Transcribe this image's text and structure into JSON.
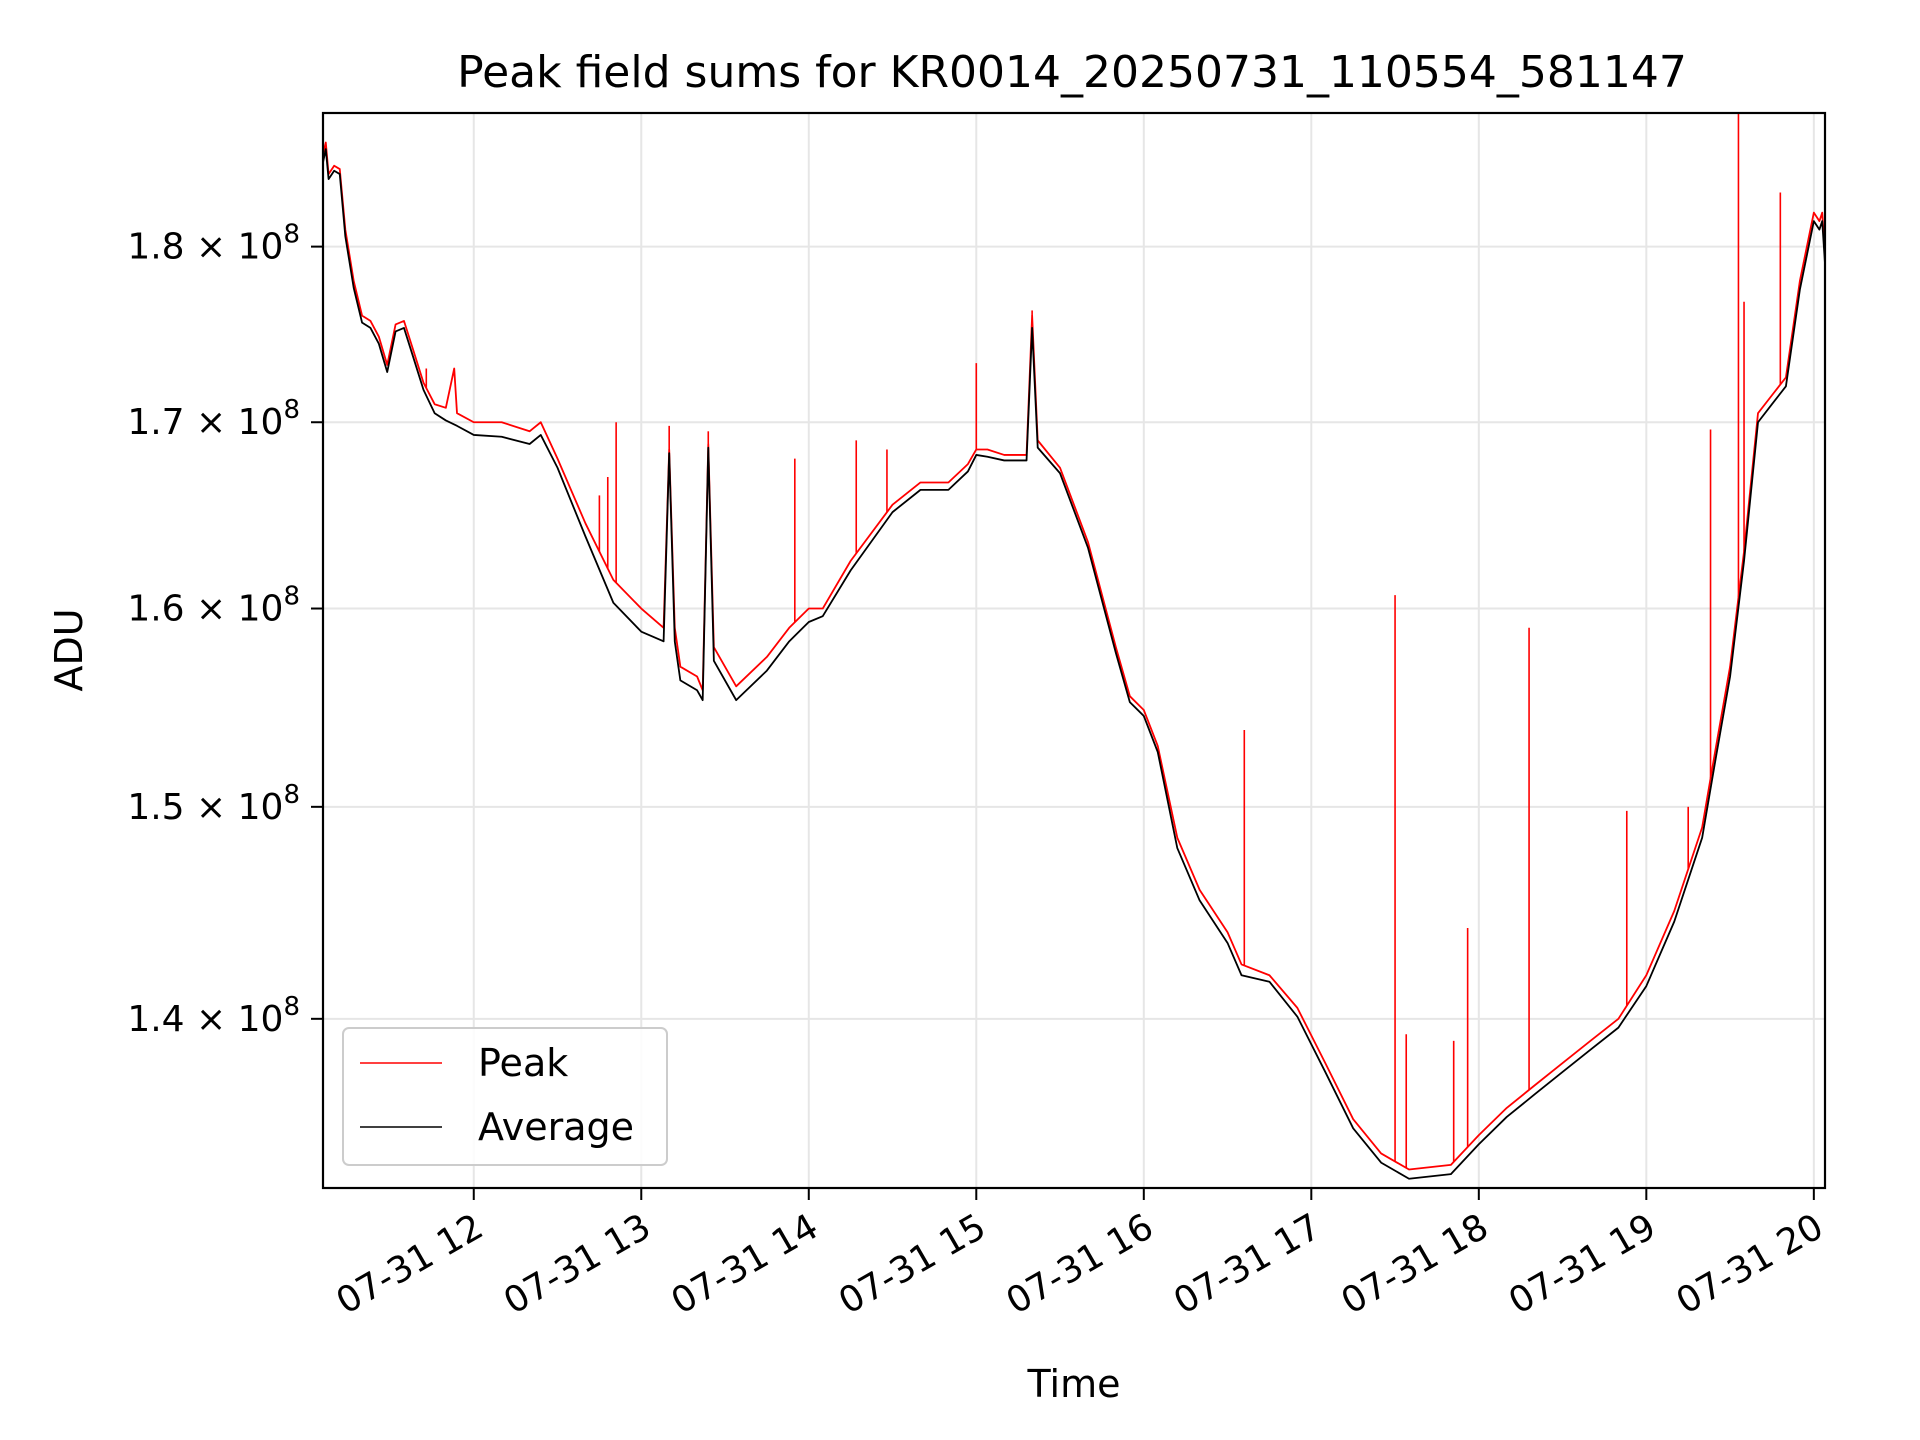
{
  "chart_data": {
    "type": "line",
    "title": "Peak field sums for KR0014_20250731_110554_581147",
    "xlabel": "Time",
    "ylabel": "ADU",
    "y_scale": "log",
    "grid": true,
    "legend_position": "lower-left",
    "xlim": [
      "2025-07-31 11:06",
      "2025-07-31 20:04"
    ],
    "ylim": [
      132500000,
      188000000
    ],
    "x_ticks": [
      {
        "value": "2025-07-31 12:00",
        "label": "07-31 12"
      },
      {
        "value": "2025-07-31 13:00",
        "label": "07-31 13"
      },
      {
        "value": "2025-07-31 14:00",
        "label": "07-31 14"
      },
      {
        "value": "2025-07-31 15:00",
        "label": "07-31 15"
      },
      {
        "value": "2025-07-31 16:00",
        "label": "07-31 16"
      },
      {
        "value": "2025-07-31 17:00",
        "label": "07-31 17"
      },
      {
        "value": "2025-07-31 18:00",
        "label": "07-31 18"
      },
      {
        "value": "2025-07-31 19:00",
        "label": "07-31 19"
      },
      {
        "value": "2025-07-31 20:00",
        "label": "07-31 20"
      }
    ],
    "y_ticks": [
      {
        "value": 140000000,
        "label": "1.4",
        "exp": "8"
      },
      {
        "value": 150000000,
        "label": "1.5",
        "exp": "8"
      },
      {
        "value": 160000000,
        "label": "1.6",
        "exp": "8"
      },
      {
        "value": 170000000,
        "label": "1.7",
        "exp": "8"
      },
      {
        "value": 180000000,
        "label": "1.8",
        "exp": "8"
      }
    ],
    "series": [
      {
        "name": "Peak",
        "color": "#ff0000",
        "points": [
          [
            "2025-07-31 11:06",
            185500000
          ],
          [
            "2025-07-31 11:07",
            186200000
          ],
          [
            "2025-07-31 11:08",
            184300000
          ],
          [
            "2025-07-31 11:10",
            184800000
          ],
          [
            "2025-07-31 11:12",
            184600000
          ],
          [
            "2025-07-31 11:14",
            181000000
          ],
          [
            "2025-07-31 11:17",
            178000000
          ],
          [
            "2025-07-31 11:20",
            176000000
          ],
          [
            "2025-07-31 11:23",
            175700000
          ],
          [
            "2025-07-31 11:26",
            174800000
          ],
          [
            "2025-07-31 11:29",
            173200000
          ],
          [
            "2025-07-31 11:32",
            175500000
          ],
          [
            "2025-07-31 11:35",
            175700000
          ],
          [
            "2025-07-31 11:38",
            174200000
          ],
          [
            "2025-07-31 11:42",
            172200000
          ],
          [
            "2025-07-31 11:46",
            171000000
          ],
          [
            "2025-07-31 11:50",
            170800000
          ],
          [
            "2025-07-31 11:53",
            173000000
          ],
          [
            "2025-07-31 11:54",
            170500000
          ],
          [
            "2025-07-31 12:00",
            170000000
          ],
          [
            "2025-07-31 12:10",
            170000000
          ],
          [
            "2025-07-31 12:20",
            169500000
          ],
          [
            "2025-07-31 12:24",
            170000000
          ],
          [
            "2025-07-31 12:30",
            168000000
          ],
          [
            "2025-07-31 12:40",
            164500000
          ],
          [
            "2025-07-31 12:50",
            161500000
          ],
          [
            "2025-07-31 13:00",
            160000000
          ],
          [
            "2025-07-31 13:08",
            159000000
          ],
          [
            "2025-07-31 13:10",
            168500000
          ],
          [
            "2025-07-31 13:12",
            159000000
          ],
          [
            "2025-07-31 13:14",
            157000000
          ],
          [
            "2025-07-31 13:20",
            156500000
          ],
          [
            "2025-07-31 13:22",
            155800000
          ],
          [
            "2025-07-31 13:24",
            168800000
          ],
          [
            "2025-07-31 13:26",
            158000000
          ],
          [
            "2025-07-31 13:34",
            156000000
          ],
          [
            "2025-07-31 13:45",
            157500000
          ],
          [
            "2025-07-31 13:53",
            159000000
          ],
          [
            "2025-07-31 14:00",
            160000000
          ],
          [
            "2025-07-31 14:05",
            160000000
          ],
          [
            "2025-07-31 14:15",
            162500000
          ],
          [
            "2025-07-31 14:30",
            165500000
          ],
          [
            "2025-07-31 14:40",
            166700000
          ],
          [
            "2025-07-31 14:50",
            166700000
          ],
          [
            "2025-07-31 14:57",
            167700000
          ],
          [
            "2025-07-31 15:00",
            168500000
          ],
          [
            "2025-07-31 15:04",
            168500000
          ],
          [
            "2025-07-31 15:10",
            168200000
          ],
          [
            "2025-07-31 15:18",
            168200000
          ],
          [
            "2025-07-31 15:20",
            176000000
          ],
          [
            "2025-07-31 15:22",
            169000000
          ],
          [
            "2025-07-31 15:30",
            167500000
          ],
          [
            "2025-07-31 15:40",
            163500000
          ],
          [
            "2025-07-31 15:50",
            158000000
          ],
          [
            "2025-07-31 15:55",
            155500000
          ],
          [
            "2025-07-31 16:00",
            154800000
          ],
          [
            "2025-07-31 16:05",
            153000000
          ],
          [
            "2025-07-31 16:12",
            148500000
          ],
          [
            "2025-07-31 16:20",
            146000000
          ],
          [
            "2025-07-31 16:30",
            144000000
          ],
          [
            "2025-07-31 16:35",
            142500000
          ],
          [
            "2025-07-31 16:45",
            142000000
          ],
          [
            "2025-07-31 16:55",
            140500000
          ],
          [
            "2025-07-31 17:05",
            138000000
          ],
          [
            "2025-07-31 17:15",
            135500000
          ],
          [
            "2025-07-31 17:25",
            134000000
          ],
          [
            "2025-07-31 17:35",
            133300000
          ],
          [
            "2025-07-31 17:50",
            133500000
          ],
          [
            "2025-07-31 18:00",
            134800000
          ],
          [
            "2025-07-31 18:10",
            136000000
          ],
          [
            "2025-07-31 18:20",
            137000000
          ],
          [
            "2025-07-31 18:30",
            138000000
          ],
          [
            "2025-07-31 18:40",
            139000000
          ],
          [
            "2025-07-31 18:50",
            140000000
          ],
          [
            "2025-07-31 19:00",
            142000000
          ],
          [
            "2025-07-31 19:10",
            145000000
          ],
          [
            "2025-07-31 19:20",
            149000000
          ],
          [
            "2025-07-31 19:25",
            153000000
          ],
          [
            "2025-07-31 19:30",
            157000000
          ],
          [
            "2025-07-31 19:35",
            163000000
          ],
          [
            "2025-07-31 19:40",
            170500000
          ],
          [
            "2025-07-31 19:45",
            171500000
          ],
          [
            "2025-07-31 19:50",
            172500000
          ],
          [
            "2025-07-31 19:55",
            178000000
          ],
          [
            "2025-07-31 20:00",
            182000000
          ],
          [
            "2025-07-31 20:02",
            181500000
          ],
          [
            "2025-07-31 20:03",
            182000000
          ],
          [
            "2025-07-31 20:04",
            179500000
          ]
        ],
        "spikes": [
          [
            "2025-07-31 11:43",
            173000000
          ],
          [
            "2025-07-31 12:45",
            166000000
          ],
          [
            "2025-07-31 12:48",
            167000000
          ],
          [
            "2025-07-31 12:51",
            170000000
          ],
          [
            "2025-07-31 13:10",
            169800000
          ],
          [
            "2025-07-31 13:24",
            169500000
          ],
          [
            "2025-07-31 13:55",
            168000000
          ],
          [
            "2025-07-31 14:17",
            169000000
          ],
          [
            "2025-07-31 14:28",
            168500000
          ],
          [
            "2025-07-31 15:00",
            173300000
          ],
          [
            "2025-07-31 15:20",
            176300000
          ],
          [
            "2025-07-31 16:36",
            153800000
          ],
          [
            "2025-07-31 17:30",
            160700000
          ],
          [
            "2025-07-31 17:34",
            139300000
          ],
          [
            "2025-07-31 17:51",
            139000000
          ],
          [
            "2025-07-31 17:56",
            144200000
          ],
          [
            "2025-07-31 18:18",
            159000000
          ],
          [
            "2025-07-31 18:53",
            149800000
          ],
          [
            "2025-07-31 19:15",
            150000000
          ],
          [
            "2025-07-31 19:23",
            169600000
          ],
          [
            "2025-07-31 19:33",
            188000000
          ],
          [
            "2025-07-31 19:35",
            176800000
          ],
          [
            "2025-07-31 19:48",
            183200000
          ]
        ]
      },
      {
        "name": "Average",
        "color": "#000000",
        "points": [
          [
            "2025-07-31 11:06",
            185000000
          ],
          [
            "2025-07-31 11:07",
            185800000
          ],
          [
            "2025-07-31 11:08",
            184000000
          ],
          [
            "2025-07-31 11:10",
            184500000
          ],
          [
            "2025-07-31 11:12",
            184300000
          ],
          [
            "2025-07-31 11:14",
            180600000
          ],
          [
            "2025-07-31 11:17",
            177600000
          ],
          [
            "2025-07-31 11:20",
            175600000
          ],
          [
            "2025-07-31 11:23",
            175300000
          ],
          [
            "2025-07-31 11:26",
            174400000
          ],
          [
            "2025-07-31 11:29",
            172800000
          ],
          [
            "2025-07-31 11:32",
            175100000
          ],
          [
            "2025-07-31 11:35",
            175300000
          ],
          [
            "2025-07-31 11:38",
            173800000
          ],
          [
            "2025-07-31 11:42",
            171800000
          ],
          [
            "2025-07-31 11:46",
            170500000
          ],
          [
            "2025-07-31 11:50",
            170100000
          ],
          [
            "2025-07-31 11:54",
            169800000
          ],
          [
            "2025-07-31 12:00",
            169300000
          ],
          [
            "2025-07-31 12:10",
            169200000
          ],
          [
            "2025-07-31 12:20",
            168800000
          ],
          [
            "2025-07-31 12:24",
            169300000
          ],
          [
            "2025-07-31 12:30",
            167500000
          ],
          [
            "2025-07-31 12:40",
            163800000
          ],
          [
            "2025-07-31 12:50",
            160300000
          ],
          [
            "2025-07-31 13:00",
            158800000
          ],
          [
            "2025-07-31 13:08",
            158300000
          ],
          [
            "2025-07-31 13:10",
            168300000
          ],
          [
            "2025-07-31 13:12",
            158300000
          ],
          [
            "2025-07-31 13:14",
            156300000
          ],
          [
            "2025-07-31 13:20",
            155800000
          ],
          [
            "2025-07-31 13:22",
            155300000
          ],
          [
            "2025-07-31 13:24",
            168600000
          ],
          [
            "2025-07-31 13:26",
            157300000
          ],
          [
            "2025-07-31 13:34",
            155300000
          ],
          [
            "2025-07-31 13:45",
            156800000
          ],
          [
            "2025-07-31 13:53",
            158300000
          ],
          [
            "2025-07-31 14:00",
            159300000
          ],
          [
            "2025-07-31 14:05",
            159600000
          ],
          [
            "2025-07-31 14:15",
            162000000
          ],
          [
            "2025-07-31 14:30",
            165100000
          ],
          [
            "2025-07-31 14:40",
            166300000
          ],
          [
            "2025-07-31 14:50",
            166300000
          ],
          [
            "2025-07-31 14:57",
            167300000
          ],
          [
            "2025-07-31 15:00",
            168200000
          ],
          [
            "2025-07-31 15:04",
            168100000
          ],
          [
            "2025-07-31 15:10",
            167900000
          ],
          [
            "2025-07-31 15:18",
            167900000
          ],
          [
            "2025-07-31 15:20",
            175300000
          ],
          [
            "2025-07-31 15:22",
            168600000
          ],
          [
            "2025-07-31 15:30",
            167200000
          ],
          [
            "2025-07-31 15:40",
            163200000
          ],
          [
            "2025-07-31 15:50",
            157700000
          ],
          [
            "2025-07-31 15:55",
            155200000
          ],
          [
            "2025-07-31 16:00",
            154500000
          ],
          [
            "2025-07-31 16:05",
            152700000
          ],
          [
            "2025-07-31 16:12",
            148000000
          ],
          [
            "2025-07-31 16:20",
            145500000
          ],
          [
            "2025-07-31 16:30",
            143500000
          ],
          [
            "2025-07-31 16:35",
            142000000
          ],
          [
            "2025-07-31 16:45",
            141700000
          ],
          [
            "2025-07-31 16:55",
            140100000
          ],
          [
            "2025-07-31 17:05",
            137600000
          ],
          [
            "2025-07-31 17:15",
            135100000
          ],
          [
            "2025-07-31 17:25",
            133600000
          ],
          [
            "2025-07-31 17:35",
            132900000
          ],
          [
            "2025-07-31 17:50",
            133100000
          ],
          [
            "2025-07-31 18:00",
            134400000
          ],
          [
            "2025-07-31 18:10",
            135600000
          ],
          [
            "2025-07-31 18:20",
            136600000
          ],
          [
            "2025-07-31 18:30",
            137600000
          ],
          [
            "2025-07-31 18:40",
            138600000
          ],
          [
            "2025-07-31 18:50",
            139600000
          ],
          [
            "2025-07-31 19:00",
            141500000
          ],
          [
            "2025-07-31 19:10",
            144500000
          ],
          [
            "2025-07-31 19:20",
            148500000
          ],
          [
            "2025-07-31 19:25",
            152500000
          ],
          [
            "2025-07-31 19:30",
            156500000
          ],
          [
            "2025-07-31 19:35",
            162500000
          ],
          [
            "2025-07-31 19:40",
            170000000
          ],
          [
            "2025-07-31 19:45",
            171000000
          ],
          [
            "2025-07-31 19:50",
            172000000
          ],
          [
            "2025-07-31 19:55",
            177500000
          ],
          [
            "2025-07-31 20:00",
            181500000
          ],
          [
            "2025-07-31 20:02",
            181000000
          ],
          [
            "2025-07-31 20:03",
            181500000
          ],
          [
            "2025-07-31 20:04",
            179000000
          ]
        ]
      }
    ]
  }
}
